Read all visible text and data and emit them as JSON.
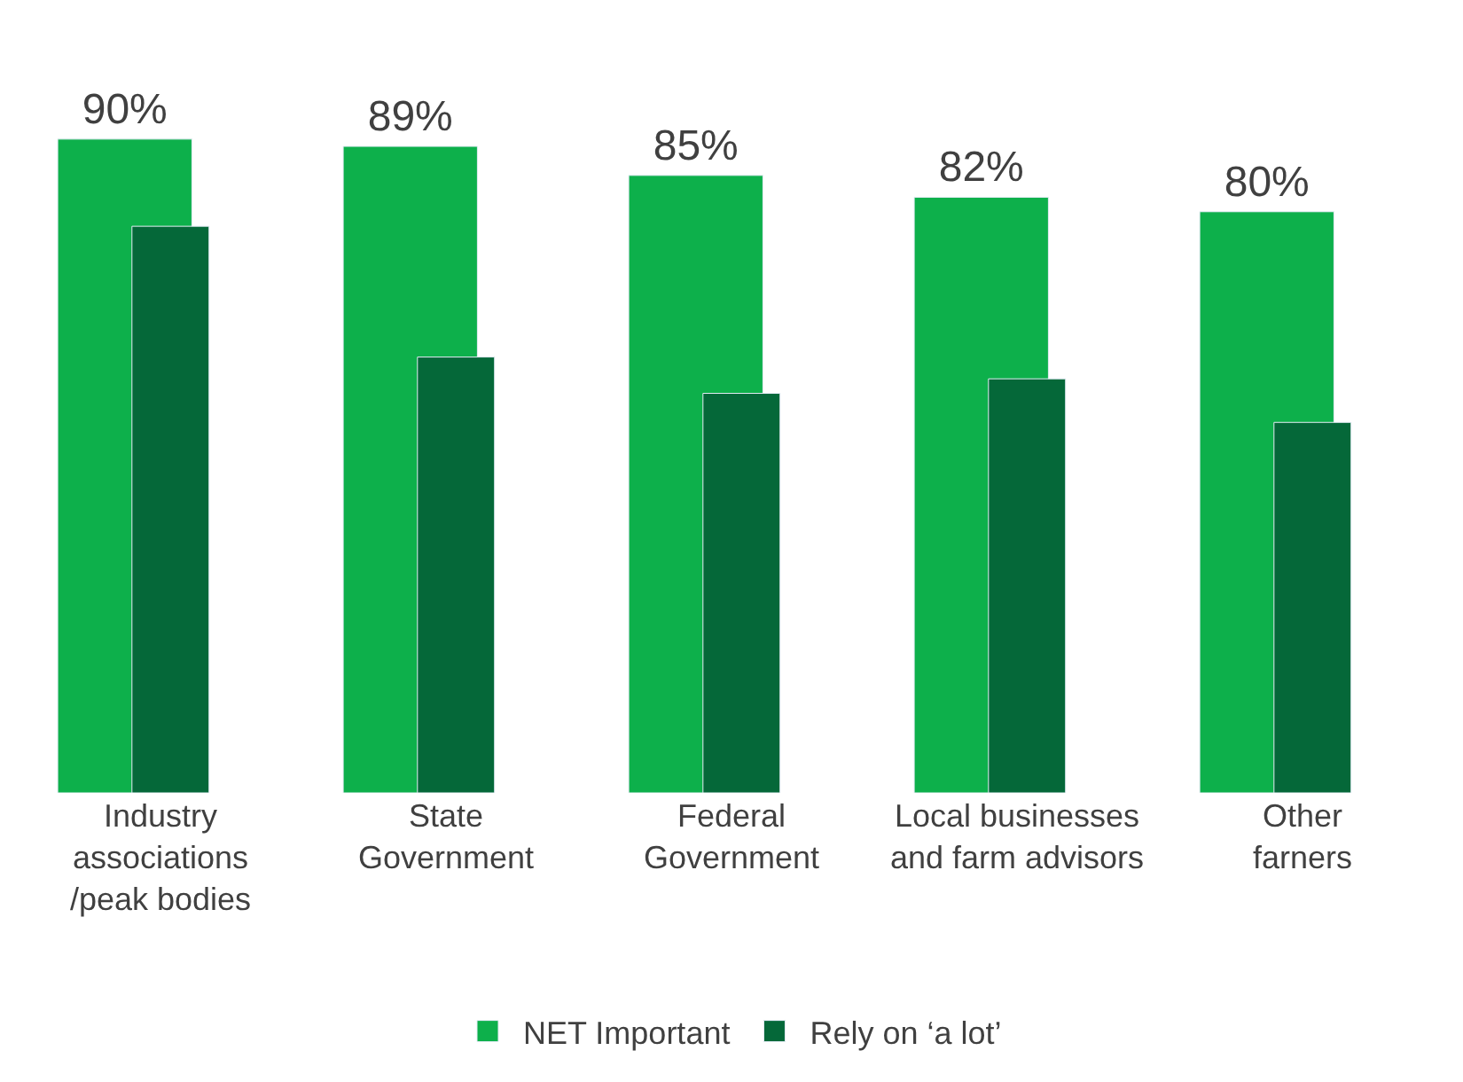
{
  "chart_data": {
    "type": "bar",
    "categories": [
      "Industry\nassociations\n/peak bodies",
      "State\nGovernment",
      "Federal\nGovernment",
      "Local businesses\nand farm advisors",
      "Other\nfarners"
    ],
    "series": [
      {
        "name": "NET Important",
        "color": "#0db04b",
        "values": [
          90,
          89,
          85,
          82,
          80
        ],
        "data_labels": true,
        "value_labels": [
          "90%",
          "89%",
          "85%",
          "82%",
          "80%"
        ]
      },
      {
        "name": "Rely on ‘a lot’",
        "color": "#056839",
        "values": [
          78,
          60,
          55,
          57,
          51
        ]
      }
    ],
    "legend": "bottom"
  }
}
